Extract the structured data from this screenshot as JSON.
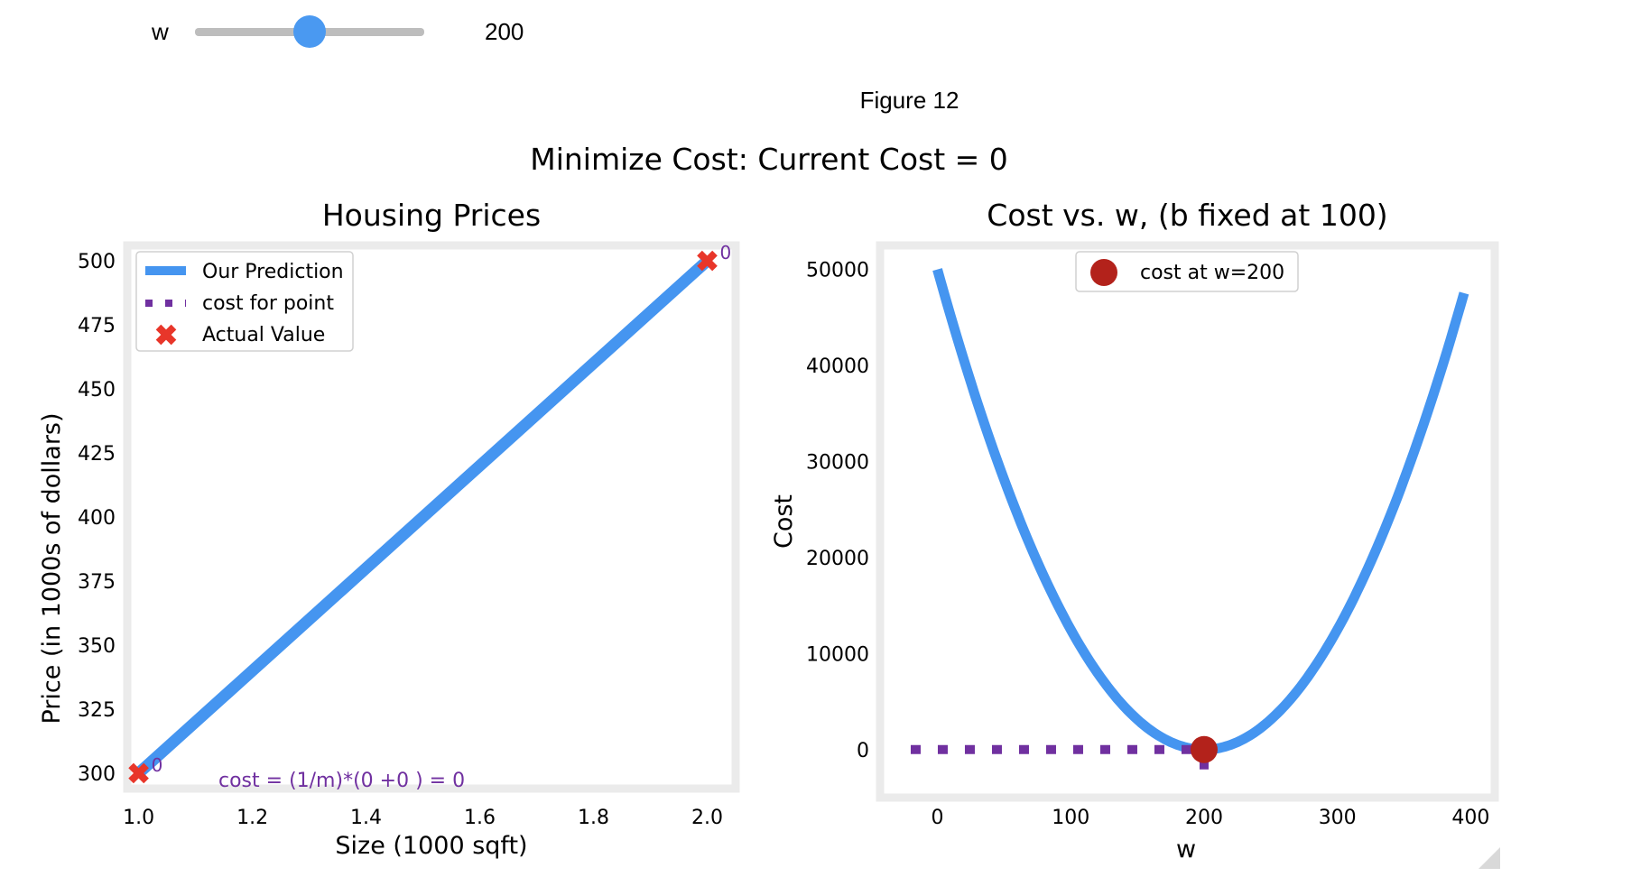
{
  "widget": {
    "label": "w",
    "value": "200",
    "min": 0,
    "max": 400,
    "current": 200
  },
  "figure_label": "Figure 12",
  "suptitle": "Minimize Cost: Current Cost = 0",
  "colors": {
    "blue": "#4595f0",
    "purple": "#7030a0",
    "red": "#e8362a",
    "darkred": "#b3221b"
  },
  "chart_data": [
    {
      "type": "line",
      "title": "Housing Prices",
      "xlabel": "Size (1000 sqft)",
      "ylabel": "Price (in 1000s of dollars)",
      "xlim": [
        0.98,
        2.05
      ],
      "ylim": [
        294,
        506
      ],
      "xticks": [
        "1.0",
        "1.2",
        "1.4",
        "1.6",
        "1.8",
        "2.0"
      ],
      "yticks": [
        "300",
        "325",
        "350",
        "375",
        "400",
        "425",
        "450",
        "475",
        "500"
      ],
      "prediction": {
        "name": "Our Prediction",
        "x": [
          1.0,
          2.0
        ],
        "y": [
          300,
          500
        ]
      },
      "actual": {
        "name": "Actual Value",
        "x": [
          1.0,
          2.0
        ],
        "y": [
          300,
          500
        ],
        "labels": [
          "0",
          "0"
        ]
      },
      "cost_for_point_label": "cost for point",
      "cost_text": "cost = (1/m)*(0 +0 ) = 0",
      "legend": "upper-left"
    },
    {
      "type": "line",
      "title": "Cost vs. w, (b fixed at 100)",
      "xlabel": "w",
      "ylabel": "Cost",
      "xlim": [
        -43,
        418
      ],
      "ylim": [
        -5000,
        52500
      ],
      "xticks": [
        "0",
        "100",
        "200",
        "300",
        "400"
      ],
      "yticks": [
        "0",
        "10000",
        "20000",
        "30000",
        "40000",
        "50000"
      ],
      "curve": {
        "formula": "cost = 1.25*(w-200)^2",
        "w_min": 0,
        "w_max": 395
      },
      "current_point": {
        "name": "cost at w=200",
        "w": 200,
        "cost": 0
      },
      "cost_marker_line": {
        "x_from": -20,
        "x_to": 200,
        "y": 0
      },
      "legend": "top-center"
    }
  ]
}
